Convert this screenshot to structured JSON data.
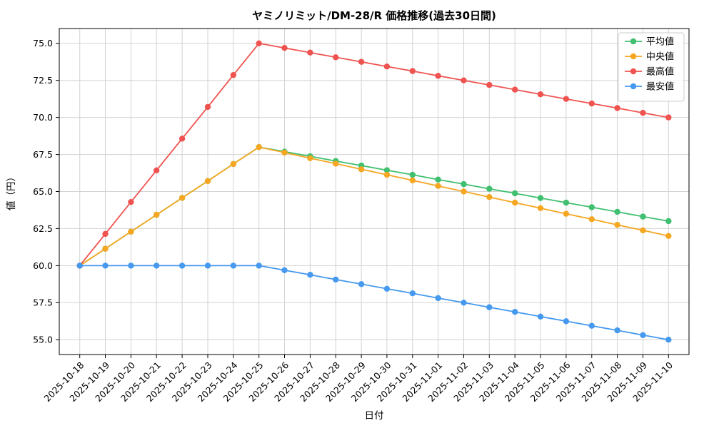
{
  "chart_data": {
    "type": "line",
    "title": "ヤミノリミット/DM-28/R 価格推移(過去30日間)",
    "xlabel": "日付",
    "ylabel": "値（円）",
    "categories": [
      "2025-10-18",
      "2025-10-19",
      "2025-10-20",
      "2025-10-21",
      "2025-10-22",
      "2025-10-23",
      "2025-10-24",
      "2025-10-25",
      "2025-10-26",
      "2025-10-27",
      "2025-10-28",
      "2025-10-29",
      "2025-10-30",
      "2025-10-31",
      "2025-11-01",
      "2025-11-02",
      "2025-11-03",
      "2025-11-04",
      "2025-11-05",
      "2025-11-06",
      "2025-11-07",
      "2025-11-08",
      "2025-11-09",
      "2025-11-10"
    ],
    "series": [
      {
        "name": "平均値",
        "color": "#3fbf6f",
        "values": [
          60.0,
          61.14,
          62.29,
          63.43,
          64.57,
          65.71,
          66.86,
          68.0,
          67.69,
          67.38,
          67.06,
          66.75,
          66.44,
          66.13,
          65.81,
          65.5,
          65.19,
          64.88,
          64.56,
          64.25,
          63.94,
          63.63,
          63.31,
          63.0
        ]
      },
      {
        "name": "中央値",
        "color": "#f5a722",
        "values": [
          60.0,
          61.14,
          62.29,
          63.43,
          64.57,
          65.71,
          66.86,
          68.0,
          67.63,
          67.25,
          66.88,
          66.5,
          66.13,
          65.75,
          65.38,
          65.0,
          64.63,
          64.25,
          63.88,
          63.5,
          63.13,
          62.75,
          62.38,
          62.0
        ]
      },
      {
        "name": "最高値",
        "color": "#ef5350",
        "values": [
          60.0,
          62.14,
          64.29,
          66.43,
          68.57,
          70.71,
          72.86,
          75.0,
          74.69,
          74.38,
          74.06,
          73.75,
          73.44,
          73.13,
          72.81,
          72.5,
          72.19,
          71.88,
          71.56,
          71.25,
          70.94,
          70.63,
          70.31,
          70.0
        ]
      },
      {
        "name": "最安値",
        "color": "#4599ef",
        "values": [
          60.0,
          60.0,
          60.0,
          60.0,
          60.0,
          60.0,
          60.0,
          60.0,
          59.69,
          59.38,
          59.06,
          58.75,
          58.44,
          58.13,
          57.81,
          57.5,
          57.19,
          56.88,
          56.56,
          56.25,
          55.94,
          55.63,
          55.31,
          55.0
        ]
      }
    ],
    "yticks": [
      55.0,
      57.5,
      60.0,
      62.5,
      65.0,
      67.5,
      70.0,
      72.5,
      75.0
    ],
    "ylim": [
      54,
      76
    ],
    "grid": true,
    "legend_position": "upper right",
    "colors": {
      "grid": "#d3d3d3",
      "spine": "#000000",
      "legend_border": "#cccccc",
      "background": "#ffffff"
    }
  }
}
